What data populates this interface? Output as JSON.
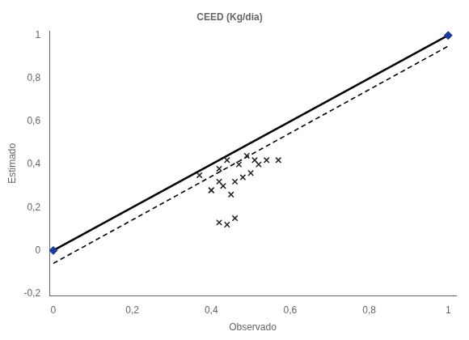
{
  "chart_data": {
    "type": "scatter",
    "title": "CEED (Kg/dia)",
    "xlabel": "Observado",
    "ylabel": "Estimado",
    "xlim": [
      -0.01,
      1.02
    ],
    "ylim": [
      -0.21,
      1.02
    ],
    "xticks": [
      0,
      {
        "value": 0.2,
        "label": "0,2"
      },
      {
        "value": 0.4,
        "label": "0,4"
      },
      {
        "value": 0.6,
        "label": "0,6"
      },
      {
        "value": 0.8,
        "label": "0,8"
      },
      1
    ],
    "yticks": [
      {
        "value": -0.2,
        "label": "-0,2"
      },
      0,
      {
        "value": 0.2,
        "label": "0,2"
      },
      {
        "value": 0.4,
        "label": "0,4"
      },
      {
        "value": 0.6,
        "label": "0,6"
      },
      {
        "value": 0.8,
        "label": "0,8"
      },
      1
    ],
    "grid": false,
    "series": [
      {
        "type": "line",
        "color": "black",
        "line_style": "solid",
        "x": [
          0,
          1
        ],
        "values": [
          0,
          1
        ]
      },
      {
        "type": "scatter",
        "color": "#1a3a9c",
        "marker": "diamond",
        "x": [
          0,
          1
        ],
        "values": [
          0,
          1
        ]
      },
      {
        "type": "line",
        "color": "black",
        "line_style": "dashed",
        "x": [
          0.0,
          1.0
        ],
        "values": [
          -0.06,
          0.95
        ]
      },
      {
        "type": "scatter",
        "color": "#222222",
        "marker": "x",
        "x": [
          0.37,
          0.4,
          0.42,
          0.43,
          0.44,
          0.45,
          0.46,
          0.47,
          0.48,
          0.49,
          0.5,
          0.51,
          0.52,
          0.54,
          0.57,
          0.42,
          0.44,
          0.46,
          0.4,
          0.42
        ],
        "values": [
          0.35,
          0.28,
          0.38,
          0.3,
          0.42,
          0.26,
          0.32,
          0.4,
          0.34,
          0.44,
          0.36,
          0.42,
          0.4,
          0.42,
          0.42,
          0.13,
          0.12,
          0.15,
          0.28,
          0.32
        ]
      }
    ]
  }
}
